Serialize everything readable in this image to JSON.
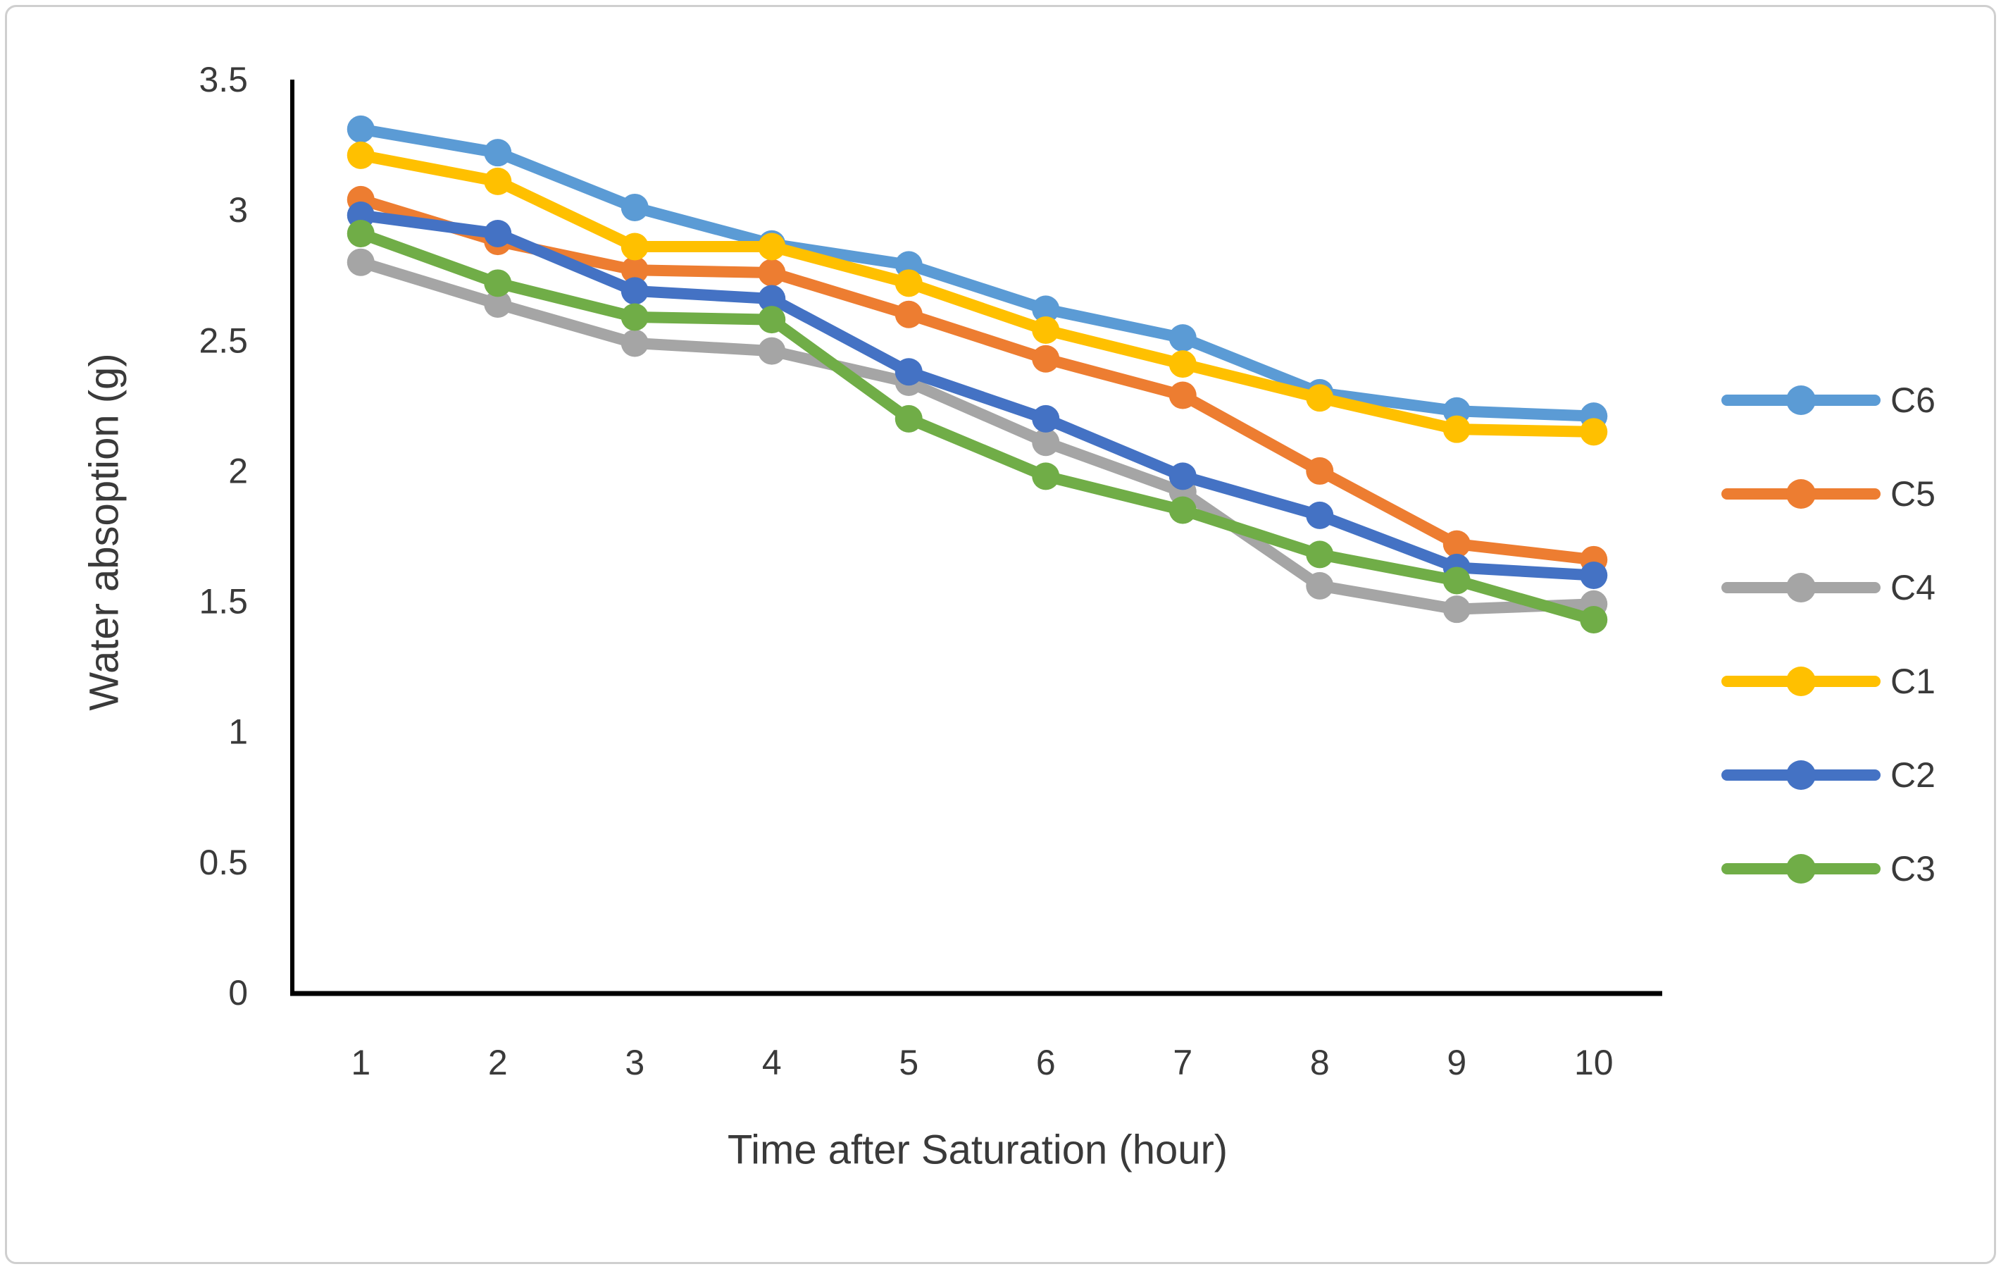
{
  "chart_data": {
    "type": "line",
    "title": "",
    "xlabel": "Time after Saturation (hour)",
    "ylabel": "Water absoption (g)",
    "categories": [
      "1",
      "2",
      "3",
      "4",
      "5",
      "6",
      "7",
      "8",
      "9",
      "10"
    ],
    "ylim": [
      0,
      3.5
    ],
    "ytick_step": 0.5,
    "yticks": [
      "0",
      "0.5",
      "1",
      "1.5",
      "2",
      "2.5",
      "3",
      "3.5"
    ],
    "grid": false,
    "legend_position": "right-center",
    "legend_order": [
      "C6",
      "C5",
      "C4",
      "C1",
      "C2",
      "C3"
    ],
    "series": [
      {
        "name": "C6",
        "color": "#5B9BD5",
        "values": [
          3.31,
          3.22,
          3.01,
          2.87,
          2.79,
          2.62,
          2.51,
          2.3,
          2.23,
          2.21
        ]
      },
      {
        "name": "C5",
        "color": "#ED7D31",
        "values": [
          3.04,
          2.88,
          2.77,
          2.76,
          2.6,
          2.43,
          2.29,
          2.0,
          1.72,
          1.66
        ]
      },
      {
        "name": "C4",
        "color": "#A5A5A5",
        "values": [
          2.8,
          2.64,
          2.49,
          2.46,
          2.34,
          2.11,
          1.92,
          1.56,
          1.47,
          1.49
        ]
      },
      {
        "name": "C1",
        "color": "#FFC000",
        "values": [
          3.21,
          3.11,
          2.86,
          2.86,
          2.72,
          2.54,
          2.41,
          2.28,
          2.16,
          2.15
        ]
      },
      {
        "name": "C2",
        "color": "#4472C4",
        "values": [
          2.98,
          2.91,
          2.69,
          2.66,
          2.38,
          2.2,
          1.98,
          1.83,
          1.63,
          1.6
        ]
      },
      {
        "name": "C3",
        "color": "#70AD47",
        "values": [
          2.91,
          2.72,
          2.59,
          2.58,
          2.2,
          1.98,
          1.85,
          1.68,
          1.58,
          1.43
        ]
      }
    ],
    "colors": {
      "axis_line": "#000000",
      "tick_text": "#3a3a3a",
      "frame_border": "#cfcfcf",
      "background": "#ffffff"
    }
  }
}
